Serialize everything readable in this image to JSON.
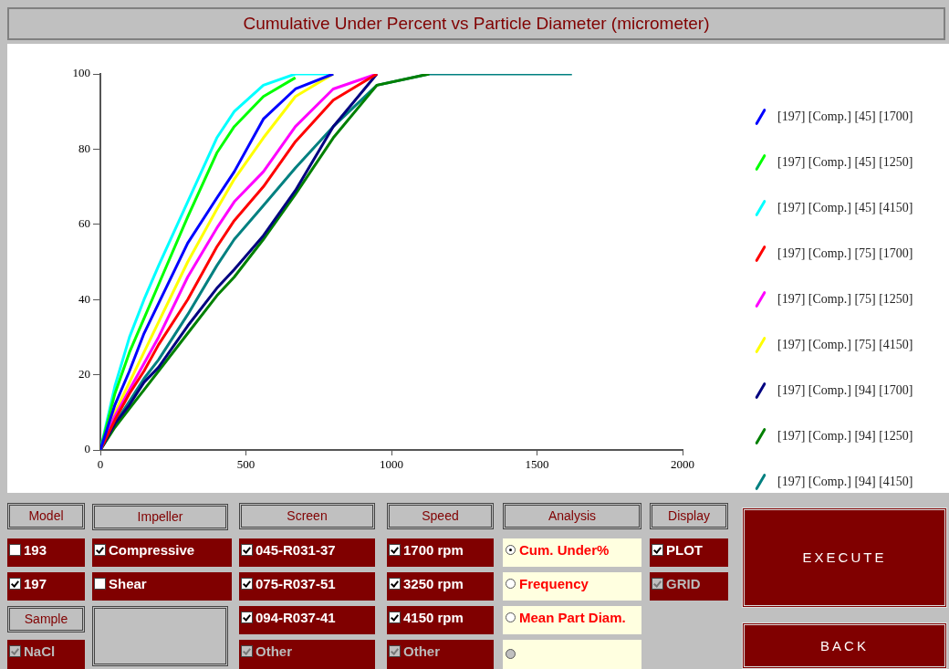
{
  "chart_data": {
    "type": "line",
    "title": "Cumulative Under Percent vs Particle Diameter (micrometer)",
    "x": [
      0,
      50,
      100,
      150,
      200,
      300,
      400,
      460,
      560,
      670,
      800,
      950,
      1130,
      1620
    ],
    "xlim": [
      0,
      2000
    ],
    "xticks": [
      0,
      500,
      1000,
      1500,
      2000
    ],
    "ylim": [
      0,
      100
    ],
    "yticks": [
      0,
      20,
      40,
      60,
      80,
      100
    ],
    "grid": false,
    "legend": "right",
    "marker": "none",
    "line_style": "solid",
    "series": [
      {
        "name": "[197] [Comp.] [45] [1700]",
        "color": "#0000ff",
        "values": [
          0,
          12,
          21,
          31,
          39,
          55,
          67,
          74,
          88,
          96,
          100,
          null,
          null,
          null
        ]
      },
      {
        "name": "[197] [Comp.] [45] [1250]",
        "color": "#00ff00",
        "values": [
          0,
          15,
          26,
          35,
          44,
          62,
          79,
          86,
          94,
          99,
          null,
          null,
          null,
          null
        ]
      },
      {
        "name": "[197] [Comp.] [45] [4150]",
        "color": "#00ffff",
        "values": [
          0,
          17,
          30,
          40,
          49,
          66,
          83,
          90,
          97,
          100,
          100,
          null,
          null,
          null
        ]
      },
      {
        "name": "[197] [Comp.] [75] [1700]",
        "color": "#ff0000",
        "values": [
          0,
          8,
          15,
          21,
          28,
          40,
          54,
          61,
          70,
          82,
          93,
          100,
          null,
          null
        ]
      },
      {
        "name": "[197] [Comp.] [75] [1250]",
        "color": "#ff00ff",
        "values": [
          0,
          9,
          16,
          23,
          30,
          46,
          59,
          66,
          74,
          86,
          96,
          100,
          null,
          null
        ]
      },
      {
        "name": "[197] [Comp.] [75] [4150]",
        "color": "#ffff00",
        "values": [
          0,
          10,
          18,
          26,
          34,
          50,
          64,
          72,
          83,
          94,
          100,
          null,
          null,
          null
        ]
      },
      {
        "name": "[197] [Comp.] [94] [1700]",
        "color": "#000080",
        "values": [
          0,
          7,
          12,
          18,
          22,
          33,
          43,
          48,
          57,
          69,
          86,
          100,
          null,
          null
        ]
      },
      {
        "name": "[197] [Comp.] [94] [1250]",
        "color": "#008000",
        "values": [
          0,
          6,
          11,
          16,
          21,
          31,
          41,
          46,
          56,
          68,
          83,
          97,
          100,
          null
        ]
      },
      {
        "name": "[197] [Comp.] [94] [4150]",
        "color": "#008080",
        "values": [
          0,
          7,
          13,
          19,
          24,
          36,
          49,
          56,
          65,
          75,
          86,
          97,
          100,
          100
        ]
      }
    ],
    "annotations": [
      "Model",
      "Impeller",
      "Screen",
      "Speed",
      "Analysis",
      "Display",
      "193",
      "Compressive",
      "045-R031-37",
      "1700 rpm",
      "Cum. Under%",
      "PLOT",
      "197",
      "Shear",
      "075-R037-51",
      "3250 rpm",
      "Frequency",
      "GRID",
      "Sample",
      "094-R037-41",
      "4150 rpm",
      "Mean Part Diam.",
      "NaCl",
      "Other",
      "Other",
      "EXECUTE",
      "BACK"
    ]
  }
}
